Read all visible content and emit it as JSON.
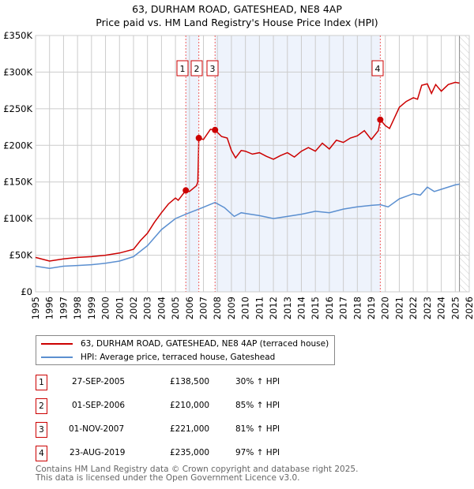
{
  "title": "63, DURHAM ROAD, GATESHEAD, NE8 4AP",
  "subtitle": "Price paid vs. HM Land Registry's House Price Index (HPI)",
  "legend": {
    "red": "63, DURHAM ROAD, GATESHEAD, NE8 4AP (terraced house)",
    "blue": "HPI: Average price, terraced house, Gateshead"
  },
  "colors": {
    "red": "#cc0000",
    "blue": "#5b8fd0",
    "shade": "#eef3fc"
  },
  "transactions": [
    {
      "num": "1",
      "date": "27-SEP-2005",
      "price": "£138,500",
      "hpi": "30% ↑ HPI"
    },
    {
      "num": "2",
      "date": "01-SEP-2006",
      "price": "£210,000",
      "hpi": "85% ↑ HPI"
    },
    {
      "num": "3",
      "date": "01-NOV-2007",
      "price": "£221,000",
      "hpi": "81% ↑ HPI"
    },
    {
      "num": "4",
      "date": "23-AUG-2019",
      "price": "£235,000",
      "hpi": "97% ↑ HPI"
    }
  ],
  "footer": {
    "line1": "Contains HM Land Registry data © Crown copyright and database right 2025.",
    "line2": "This data is licensed under the Open Government Licence v3.0."
  },
  "chart_data": {
    "type": "line",
    "xlim": [
      1995,
      2026
    ],
    "ylim": [
      0,
      350000
    ],
    "yticks": [
      {
        "v": 0,
        "label": "£0"
      },
      {
        "v": 50000,
        "label": "£50K"
      },
      {
        "v": 100000,
        "label": "£100K"
      },
      {
        "v": 150000,
        "label": "£150K"
      },
      {
        "v": 200000,
        "label": "£200K"
      },
      {
        "v": 250000,
        "label": "£250K"
      },
      {
        "v": 300000,
        "label": "£300K"
      },
      {
        "v": 350000,
        "label": "£350K"
      }
    ],
    "xticks": [
      "1995",
      "1996",
      "1997",
      "1998",
      "1999",
      "2000",
      "2001",
      "2002",
      "2003",
      "2004",
      "2005",
      "2006",
      "2007",
      "2008",
      "2009",
      "2010",
      "2011",
      "2012",
      "2013",
      "2014",
      "2015",
      "2016",
      "2017",
      "2018",
      "2019",
      "2020",
      "2021",
      "2022",
      "2023",
      "2024",
      "2025",
      "2026"
    ],
    "shaded": [
      [
        2005.74,
        2006.67
      ],
      [
        2007.83,
        2019.64
      ]
    ],
    "forecast_from": 2025.3,
    "sales": [
      {
        "label": "1",
        "x": 2005.74,
        "y": 138500
      },
      {
        "label": "2",
        "x": 2006.67,
        "y": 210000
      },
      {
        "label": "3",
        "x": 2007.83,
        "y": 221000
      },
      {
        "label": "4",
        "x": 2019.64,
        "y": 235000
      }
    ],
    "series": [
      {
        "name": "63, DURHAM ROAD, GATESHEAD, NE8 4AP (terraced house)",
        "x": [
          1995,
          1996,
          1997,
          1998,
          1999,
          2000,
          2001,
          2002,
          2002.5,
          2003,
          2003.5,
          2004,
          2004.5,
          2005,
          2005.2,
          2005.74,
          2006,
          2006.5,
          2006.6,
          2006.67,
          2007,
          2007.5,
          2007.83,
          2008.3,
          2008.7,
          2009,
          2009.3,
          2009.7,
          2010,
          2010.5,
          2011,
          2011.5,
          2012,
          2012.5,
          2013,
          2013.5,
          2014,
          2014.5,
          2015,
          2015.5,
          2016,
          2016.5,
          2017,
          2017.5,
          2018,
          2018.5,
          2019,
          2019.5,
          2019.64,
          2020,
          2020.3,
          2021,
          2021.5,
          2022,
          2022.3,
          2022.6,
          2023,
          2023.3,
          2023.6,
          2024,
          2024.5,
          2025,
          2025.3
        ],
        "y": [
          47000,
          42000,
          45000,
          47000,
          48000,
          50000,
          53000,
          58000,
          70000,
          80000,
          95000,
          108000,
          120000,
          128000,
          125000,
          138500,
          137000,
          145000,
          150000,
          210000,
          208000,
          222000,
          221000,
          212000,
          210000,
          193000,
          183000,
          193000,
          192000,
          188000,
          190000,
          185000,
          181000,
          186000,
          190000,
          184000,
          192000,
          197000,
          192000,
          203000,
          195000,
          207000,
          204000,
          210000,
          213000,
          220000,
          208000,
          220000,
          235000,
          227000,
          223000,
          252000,
          260000,
          265000,
          263000,
          282000,
          284000,
          271000,
          283000,
          274000,
          283000,
          286000,
          285000
        ]
      },
      {
        "name": "HPI: Average price, terraced house, Gateshead",
        "x": [
          1995,
          1996,
          1997,
          1998,
          1999,
          2000,
          2001,
          2002,
          2003,
          2004,
          2005,
          2005.74,
          2006.67,
          2007.83,
          2008.5,
          2009.2,
          2009.7,
          2010,
          2011,
          2012,
          2013,
          2014,
          2015,
          2016,
          2017,
          2018,
          2019,
          2019.64,
          2020.2,
          2021,
          2022,
          2022.5,
          2023,
          2023.5,
          2024,
          2025,
          2025.3
        ],
        "y": [
          35000,
          32000,
          35000,
          36000,
          37000,
          39000,
          42000,
          48000,
          63000,
          85000,
          100000,
          106000,
          113000,
          122000,
          115000,
          103000,
          108000,
          107000,
          104000,
          100000,
          103000,
          106000,
          110000,
          108000,
          113000,
          116000,
          118000,
          119000,
          116000,
          127000,
          134000,
          132000,
          143000,
          137000,
          140000,
          146000,
          147000
        ]
      }
    ]
  }
}
